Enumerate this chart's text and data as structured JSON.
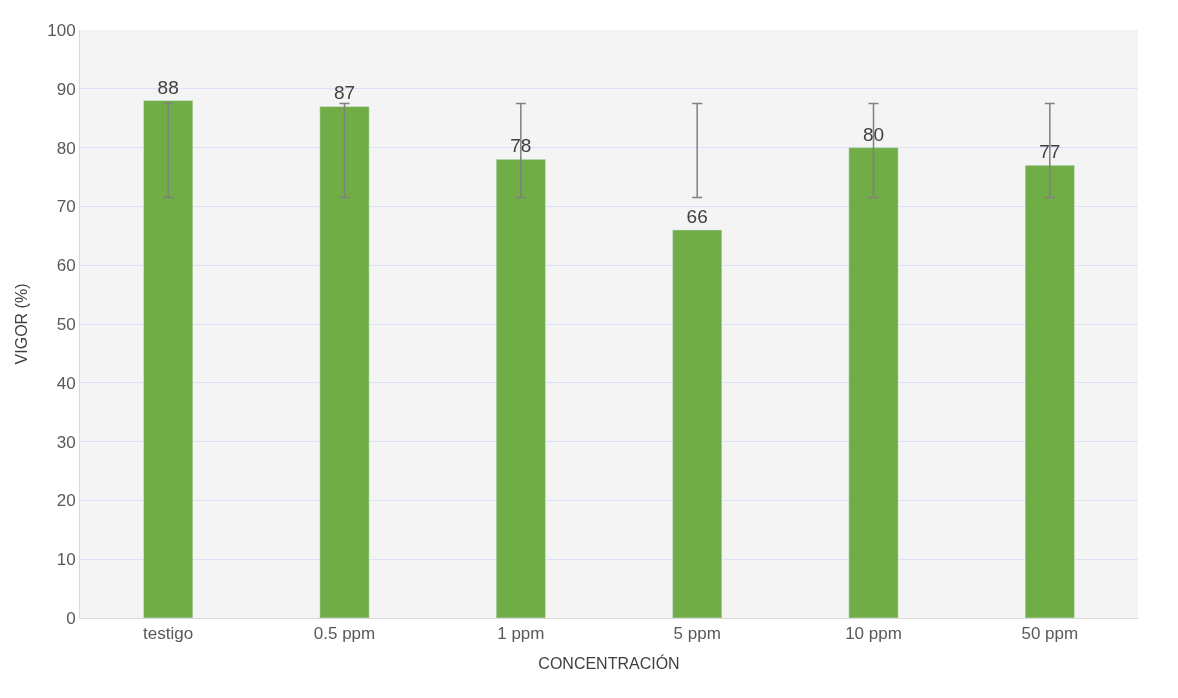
{
  "chart_data": {
    "type": "bar",
    "xlabel": "CONCENTRACIÓN",
    "ylabel": "VIGOR (%)",
    "categories": [
      "testigo",
      "0.5 ppm",
      "1 ppm",
      "5 ppm",
      "10 ppm",
      "50 ppm"
    ],
    "values": [
      88,
      87,
      78,
      66,
      80,
      77
    ],
    "color": "#70ad47",
    "errors": [
      [
        71.5,
        87.5
      ],
      [
        71.5,
        87.5
      ],
      [
        71.5,
        87.5
      ],
      [
        71.5,
        87.5
      ],
      [
        71.5,
        87.5
      ],
      [
        71.5,
        87.5
      ]
    ],
    "ylim": [
      0,
      100
    ],
    "yticks": [
      0,
      10,
      20,
      30,
      40,
      50,
      60,
      70,
      80,
      90,
      100
    ],
    "grid": "y",
    "data_labels": true
  }
}
